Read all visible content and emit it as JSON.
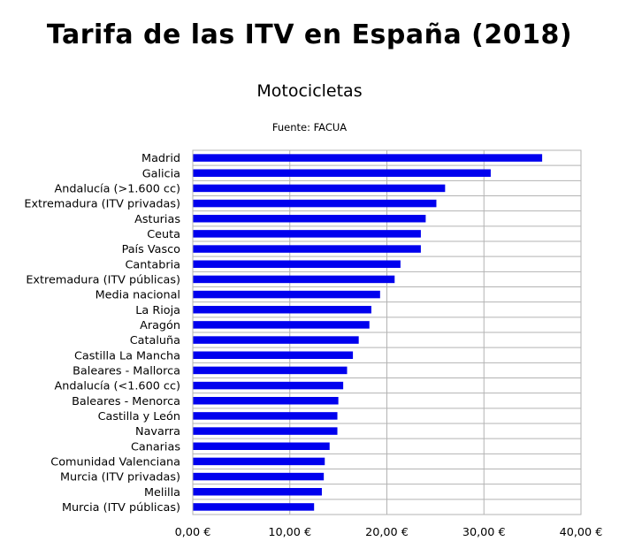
{
  "title": "Tarifa de las ITV en España (2018)",
  "subtitle": "Motocicletas",
  "source": "Fuente: FACUA",
  "colors": {
    "bar": "#0000ee",
    "grid": "#b3b3b3",
    "frame": "#b3b3b3"
  },
  "chart_data": {
    "type": "bar",
    "orientation": "horizontal",
    "categories": [
      "Madrid",
      "Galicia",
      "Andalucía (>1.600 cc)",
      "Extremadura (ITV privadas)",
      "Asturias",
      "Ceuta",
      "País Vasco",
      "Cantabria",
      "Extremadura (ITV públicas)",
      "Media nacional",
      "La Rioja",
      "Aragón",
      "Cataluña",
      "Castilla La Mancha",
      "Baleares - Mallorca",
      "Andalucía (<1.600 cc)",
      "Baleares - Menorca",
      "Castilla y León",
      "Navarra",
      "Canarias",
      "Comunidad Valenciana",
      "Murcia (ITV privadas)",
      "Melilla",
      "Murcia (ITV públicas)"
    ],
    "values": [
      36.0,
      30.7,
      26.0,
      25.1,
      24.0,
      23.5,
      23.5,
      21.4,
      20.8,
      19.3,
      18.4,
      18.2,
      17.1,
      16.5,
      15.9,
      15.5,
      15.0,
      14.9,
      14.9,
      14.1,
      13.6,
      13.5,
      13.3,
      12.5
    ],
    "xlim": [
      0,
      40
    ],
    "x_ticks": [
      "0,00 €",
      "10,00 €",
      "20,00 €",
      "30,00 €",
      "40,00 €"
    ],
    "xlabel": "",
    "ylabel": "",
    "grid": true,
    "legend": "none"
  }
}
